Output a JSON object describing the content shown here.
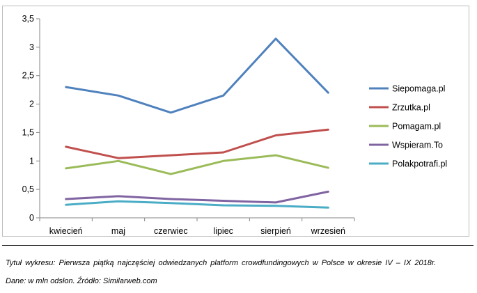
{
  "chart_data": {
    "type": "line",
    "categories": [
      "kwiecień",
      "maj",
      "czerwiec",
      "lipiec",
      "sierpień",
      "wrzesień"
    ],
    "series": [
      {
        "name": "Siepomaga.pl",
        "color": "#4f81bd",
        "values": [
          2.3,
          2.15,
          1.85,
          2.15,
          3.15,
          2.2
        ]
      },
      {
        "name": "Zrzutka.pl",
        "color": "#c0504d",
        "values": [
          1.25,
          1.05,
          1.1,
          1.15,
          1.45,
          1.55
        ]
      },
      {
        "name": "Pomagam.pl",
        "color": "#9bbb59",
        "values": [
          0.87,
          1.0,
          0.77,
          1.0,
          1.1,
          0.88
        ]
      },
      {
        "name": "Wspieram.To",
        "color": "#8064a2",
        "values": [
          0.33,
          0.38,
          0.33,
          0.3,
          0.27,
          0.46
        ]
      },
      {
        "name": "Polakpotrafi.pl",
        "color": "#4bacc6",
        "values": [
          0.23,
          0.29,
          0.26,
          0.22,
          0.21,
          0.18
        ]
      }
    ],
    "y_ticks": [
      "0",
      "0,5",
      "1",
      "1,5",
      "2",
      "2,5",
      "3",
      "3,5"
    ],
    "ylim": [
      0,
      3.5
    ],
    "y_step": 0.5,
    "grid": false,
    "legend_position": "right"
  },
  "caption": {
    "title": "Tytuł wykresu: Pierwsza piątką najczęściej odwiedzanych platform crowdfundingowych w Polsce w okresie IV – IX 2018r.",
    "source": "Dane: w mln odsłon. Źródło: Similarweb.com"
  }
}
